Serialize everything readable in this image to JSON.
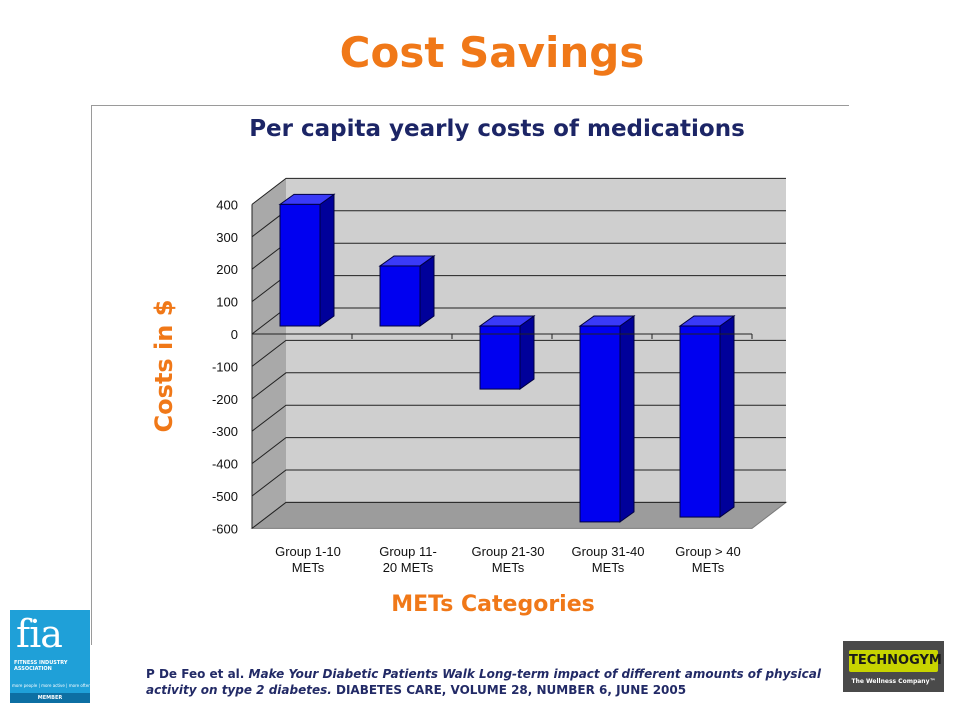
{
  "slide": {
    "title": "Cost Savings",
    "citation": {
      "authors": "P De Feo et al.",
      "article_title": "Make Your Diabetic Patients Walk Long-term impact of different amounts of physical activity on type 2 diabetes.",
      "journal": "DIABETES CARE, VOLUME 28, NUMBER 6, JUNE 2005"
    }
  },
  "logos": {
    "fia": {
      "mark": "fia",
      "name_lines": [
        "FITNESS INDUSTRY",
        "ASSOCIATION"
      ],
      "tagline": "more people | more active | more often",
      "member": "MEMBER"
    },
    "technogym": {
      "mark": "TECHNOGYM",
      "tagline": "The Wellness Company™"
    }
  },
  "colors": {
    "title": "#f07818",
    "axis_label": "#f07818",
    "bar_front": "#0000f0",
    "bar_top": "#3a3af8",
    "bar_side": "#00009a",
    "plot_back": "#cfcfcf",
    "plot_side": "#a9a9a9",
    "floor": "#9c9c9c",
    "citation": "#222a66"
  },
  "chart_data": {
    "type": "bar",
    "title": "Per capita yearly costs of medications",
    "xlabel": "METs Categories",
    "ylabel": "Costs in $",
    "ylim": [
      -600,
      400
    ],
    "yticks": [
      400,
      300,
      200,
      100,
      0,
      -100,
      -200,
      -300,
      -400,
      -500,
      -600
    ],
    "grid": true,
    "categories": [
      [
        "Group 1-10",
        "METs"
      ],
      [
        "Group 11-",
        "20 METs"
      ],
      [
        "Group 21-30",
        "METs"
      ],
      [
        "Group 31-40",
        "METs"
      ],
      [
        "Group > 40",
        "METs"
      ]
    ],
    "values": [
      400,
      210,
      -170,
      -580,
      -565
    ]
  }
}
